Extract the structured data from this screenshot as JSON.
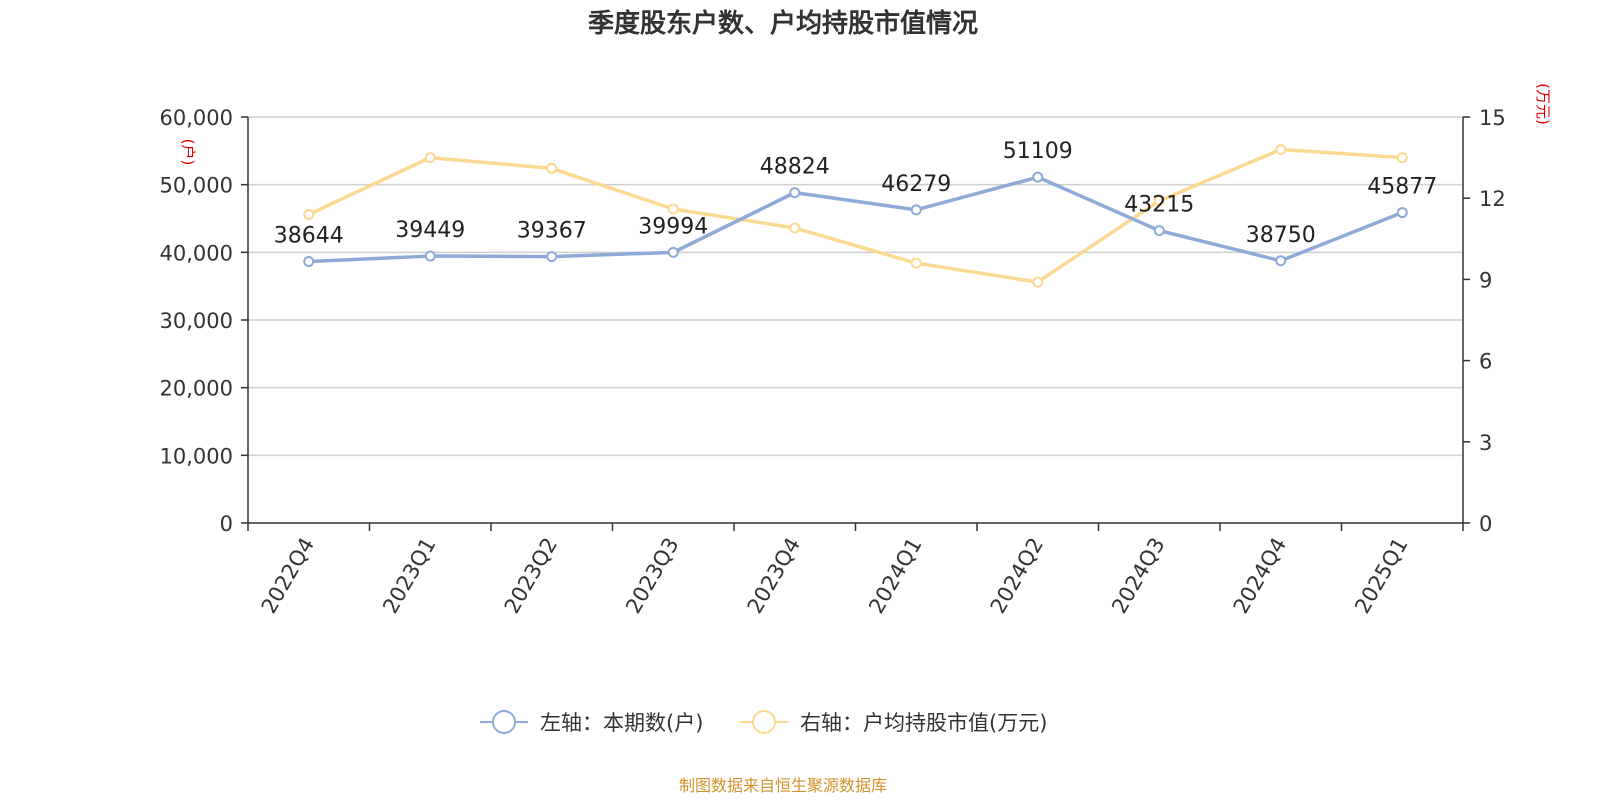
{
  "chart_data": {
    "type": "line",
    "title": "季度股东户数、户均持股市值情况",
    "categories": [
      "2022Q4",
      "2023Q1",
      "2023Q2",
      "2023Q3",
      "2023Q4",
      "2024Q1",
      "2024Q2",
      "2024Q3",
      "2024Q4",
      "2025Q1"
    ],
    "left_axis": {
      "unit": "(户)",
      "ylim": [
        0,
        60000
      ],
      "ticks": [
        "0",
        "10,000",
        "20,000",
        "30,000",
        "40,000",
        "50,000",
        "60,000"
      ]
    },
    "right_axis": {
      "unit": "(万元)",
      "ylim": [
        0,
        15
      ],
      "ticks": [
        "0",
        "3",
        "6",
        "9",
        "12",
        "15"
      ]
    },
    "series": [
      {
        "name": "左轴：本期数(户)",
        "axis": "left",
        "color": "#8eaad6",
        "values": [
          38644,
          39449,
          39367,
          39994,
          48824,
          46279,
          51109,
          43215,
          38750,
          45877
        ],
        "labels": [
          "38644",
          "39449",
          "39367",
          "39994",
          "48824",
          "46279",
          "51109",
          "43215",
          "38750",
          "45877"
        ]
      },
      {
        "name": "右轴：户均持股市值(万元)",
        "axis": "right",
        "color": "#fcd993",
        "values": [
          11.4,
          13.5,
          13.1,
          11.6,
          10.9,
          9.6,
          8.9,
          11.9,
          13.8,
          13.5
        ]
      }
    ],
    "grid": true,
    "legend_position": "bottom-center",
    "source": "制图数据来自恒生聚源数据库"
  }
}
